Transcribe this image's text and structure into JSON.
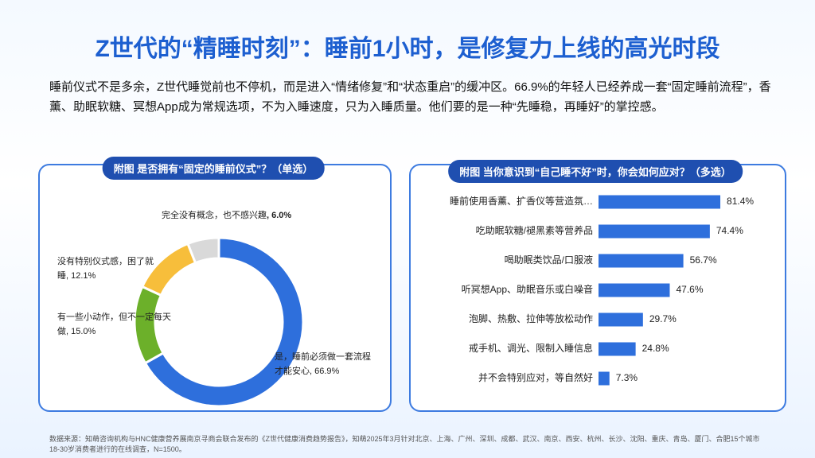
{
  "title": "Z世代的“精睡时刻”：睡前1小时，是修复力上线的高光时段",
  "intro": "睡前仪式不是多余，Z世代睡觉前也不停机，而是进入“情绪修复”和“状态重启”的缓冲区。66.9%的年轻人已经养成一套“固定睡前流程”，香薰、助眠软糖、冥想App成为常规选项，不为入睡速度，只为入睡质量。他们要的是一种“先睡稳，再睡好”的掌控感。",
  "chart_data": [
    {
      "type": "donut",
      "title": "附图 是否拥有“固定的睡前仪式”？（单选）",
      "categories": [
        "是，睡前必须做一套流程才能安心",
        "有一些小动作，但不一定每天做",
        "没有特别仪式感，困了就睡",
        "完全没有概念，也不感兴趣"
      ],
      "values": [
        66.9,
        15.0,
        12.1,
        6.0
      ],
      "value_labels": [
        "66.9%",
        "15.0%",
        "12.1%",
        "6.0%"
      ],
      "colors": [
        "#2e6fdc",
        "#6cb02a",
        "#f7be3b",
        "#d9d9d9"
      ]
    },
    {
      "type": "hbar",
      "title": "附图 当你意识到“自己睡不好”时，你会如何应对？（多选）",
      "categories": [
        "睡前使用香薰、扩香仪等营造氛…",
        "吃助眠软糖/褪黑素等营养品",
        "喝助眠类饮品/口服液",
        "听冥想App、助眠音乐或白噪音",
        "泡脚、热敷、拉伸等放松动作",
        "戒手机、调光、限制入睡信息",
        "并不会特别应对，等自然好"
      ],
      "values": [
        81.4,
        74.4,
        56.7,
        47.6,
        29.7,
        24.8,
        7.3
      ],
      "value_labels": [
        "81.4%",
        "74.4%",
        "56.7%",
        "47.6%",
        "29.7%",
        "24.8%",
        "7.3%"
      ],
      "color": "#2e6fdc"
    }
  ],
  "source": "数据来源：知萌咨询机构与HNC健康营养展南京寻商会联合发布的《Z世代健康消费趋势报告》，知萌2025年3月针对北京、上海、广州、深圳、成都、武汉、南京、西安、杭州、长沙、沈阳、重庆、青岛、厦门、合肥15个城市18-30岁消费者进行的在线调查，N=1500。"
}
